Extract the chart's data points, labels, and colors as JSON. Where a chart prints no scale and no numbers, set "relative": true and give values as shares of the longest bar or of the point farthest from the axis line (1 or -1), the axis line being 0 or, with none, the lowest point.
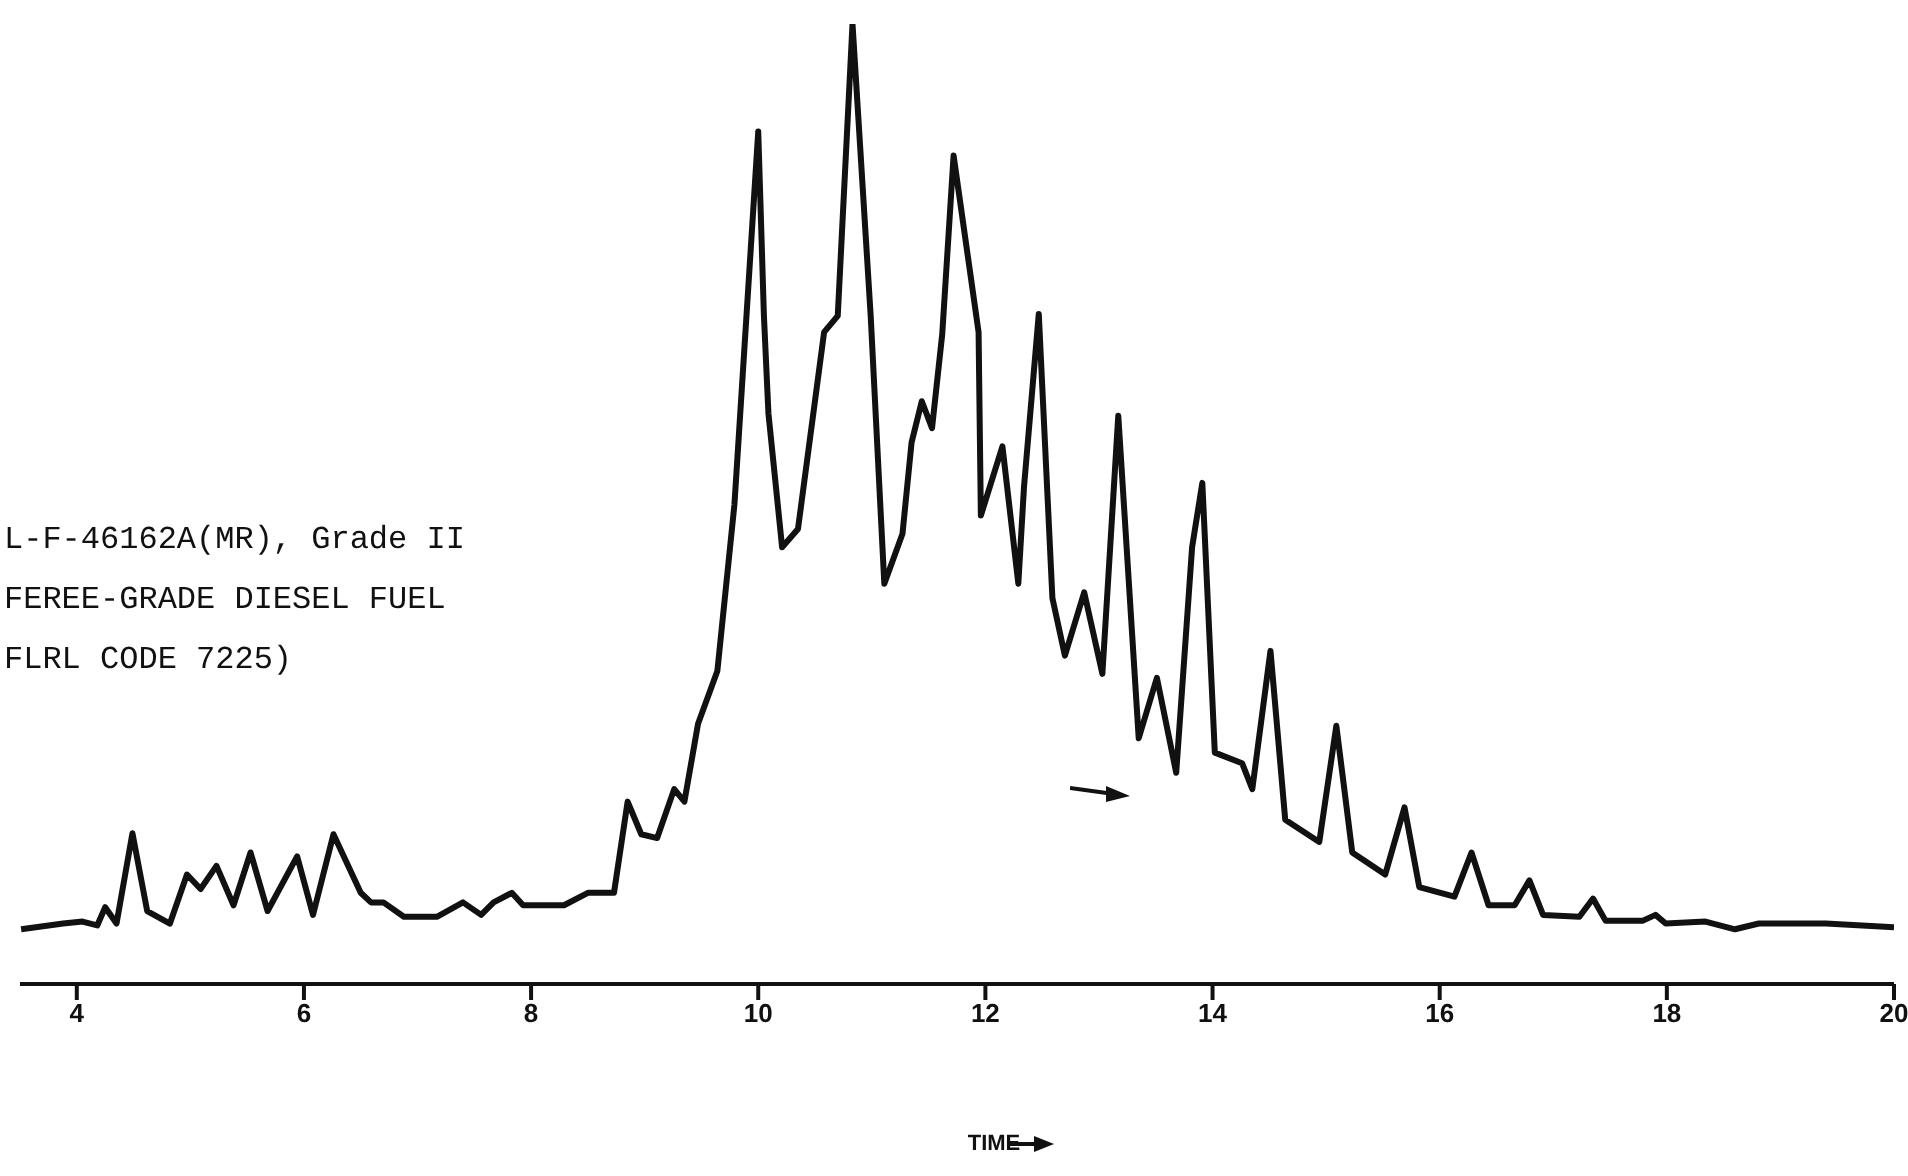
{
  "chart_data": {
    "type": "line",
    "xlabel": "TIME",
    "relative": true,
    "color": "#111111",
    "marker": "none",
    "line_style": "solid",
    "annotations": [
      "L-F-46162A(MR), Grade II",
      "FEREE-GRADE DIESEL FUEL",
      "FLRL CODE 7225)"
    ],
    "xlim": [
      3.5,
      20
    ],
    "xticks": [
      4,
      6,
      8,
      10,
      12,
      14,
      16,
      18,
      20
    ],
    "x": [
      3.51,
      3.88,
      4.05,
      4.18,
      4.25,
      4.35,
      4.49,
      4.62,
      4.82,
      4.97,
      5.09,
      5.23,
      5.38,
      5.53,
      5.68,
      5.94,
      6.08,
      6.26,
      6.5,
      6.59,
      6.7,
      6.88,
      7.17,
      7.4,
      7.56,
      7.67,
      7.83,
      7.93,
      8.29,
      8.5,
      8.73,
      8.85,
      8.97,
      9.11,
      9.26,
      9.35,
      9.47,
      9.64,
      9.79,
      10.0,
      10.05,
      10.09,
      10.21,
      10.35,
      10.58,
      10.7,
      10.83,
      10.99,
      11.11,
      11.27,
      11.35,
      11.44,
      11.53,
      11.62,
      11.72,
      11.94,
      11.96,
      12.15,
      12.29,
      12.34,
      12.47,
      12.59,
      12.7,
      12.87,
      13.03,
      13.17,
      13.35,
      13.51,
      13.68,
      13.82,
      13.91,
      14.02,
      14.26,
      14.35,
      14.51,
      14.64,
      14.94,
      15.09,
      15.23,
      15.52,
      15.69,
      15.82,
      16.13,
      16.28,
      16.43,
      16.66,
      16.79,
      16.91,
      17.23,
      17.35,
      17.46,
      17.79,
      17.9,
      17.99,
      18.34,
      18.6,
      18.81,
      19.4,
      20.0
    ],
    "values": [
      0.057,
      0.063,
      0.065,
      0.061,
      0.08,
      0.063,
      0.157,
      0.076,
      0.063,
      0.114,
      0.099,
      0.123,
      0.082,
      0.137,
      0.076,
      0.133,
      0.072,
      0.156,
      0.095,
      0.085,
      0.085,
      0.07,
      0.07,
      0.085,
      0.072,
      0.085,
      0.095,
      0.082,
      0.082,
      0.095,
      0.095,
      0.19,
      0.156,
      0.152,
      0.203,
      0.19,
      0.271,
      0.326,
      0.499,
      0.888,
      0.696,
      0.594,
      0.455,
      0.474,
      0.679,
      0.696,
      1,
      0.696,
      0.417,
      0.469,
      0.564,
      0.607,
      0.579,
      0.677,
      0.863,
      0.679,
      0.488,
      0.56,
      0.417,
      0.518,
      0.698,
      0.402,
      0.342,
      0.408,
      0.323,
      0.592,
      0.256,
      0.319,
      0.22,
      0.455,
      0.522,
      0.241,
      0.23,
      0.203,
      0.347,
      0.171,
      0.148,
      0.269,
      0.137,
      0.114,
      0.184,
      0.101,
      0.091,
      0.137,
      0.082,
      0.082,
      0.108,
      0.072,
      0.07,
      0.089,
      0.066,
      0.066,
      0.072,
      0.063,
      0.065,
      0.057,
      0.063,
      0.063,
      0.059
    ]
  }
}
